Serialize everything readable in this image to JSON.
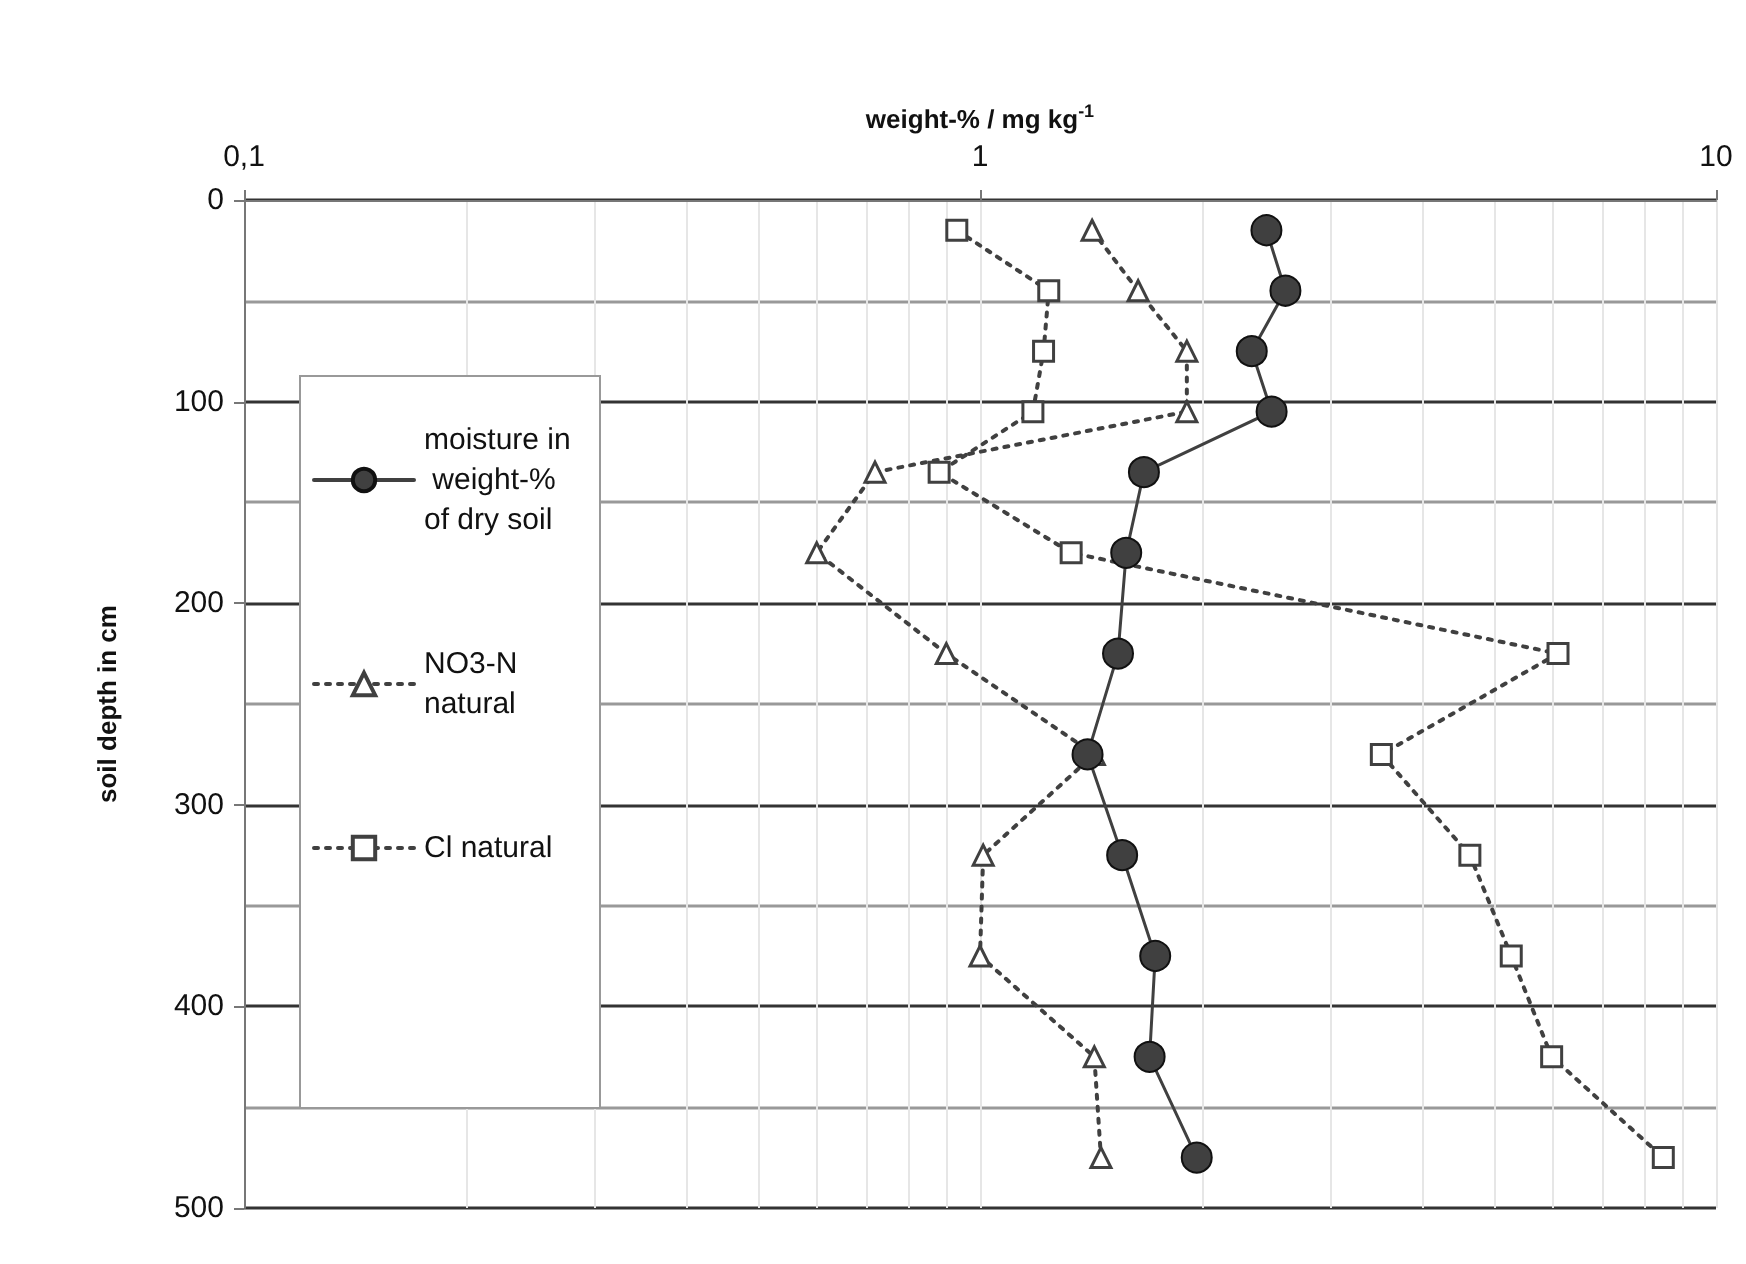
{
  "chart_data": {
    "type": "line",
    "xlabel": "weight-% / mg kg$^{-1}$",
    "ylabel": "soil depth in cm",
    "log": "x",
    "xlim": [
      0.1,
      10
    ],
    "xticks": [
      {
        "value": 0.1,
        "label": "0,1"
      },
      1,
      10
    ],
    "ylim": [
      500,
      0
    ],
    "yticks": [
      0,
      100,
      200,
      300,
      400,
      500
    ],
    "grid": true,
    "legend": "left",
    "series": [
      {
        "name": "moisture in weight-% of dry soil",
        "color": "#404040",
        "marker": "circle",
        "line_style": "solid",
        "x": [
          2.45,
          2.6,
          2.34,
          2.49,
          1.67,
          1.58,
          1.54,
          1.4,
          1.56,
          1.73,
          1.7,
          1.97
        ],
        "values": [
          15,
          45,
          75,
          105,
          135,
          175,
          225,
          275,
          325,
          375,
          425,
          475
        ]
      },
      {
        "name": "NO3-N natural",
        "color": "#404040",
        "marker": "triangle",
        "line_style": "dotted",
        "x": [
          1.42,
          1.64,
          1.91,
          1.91,
          0.72,
          0.6,
          0.9,
          1.43,
          1.01,
          1.0,
          1.43,
          1.46
        ],
        "values": [
          15,
          45,
          75,
          105,
          135,
          175,
          225,
          275,
          325,
          375,
          425,
          475
        ]
      },
      {
        "name": "Cl natural",
        "color": "#404040",
        "marker": "square",
        "line_style": "dotted",
        "x": [
          0.93,
          1.24,
          1.22,
          1.18,
          0.88,
          1.33,
          6.1,
          3.51,
          4.63,
          5.27,
          5.98,
          8.48
        ],
        "values": [
          15,
          45,
          75,
          105,
          135,
          175,
          225,
          275,
          325,
          375,
          425,
          475
        ]
      }
    ]
  }
}
